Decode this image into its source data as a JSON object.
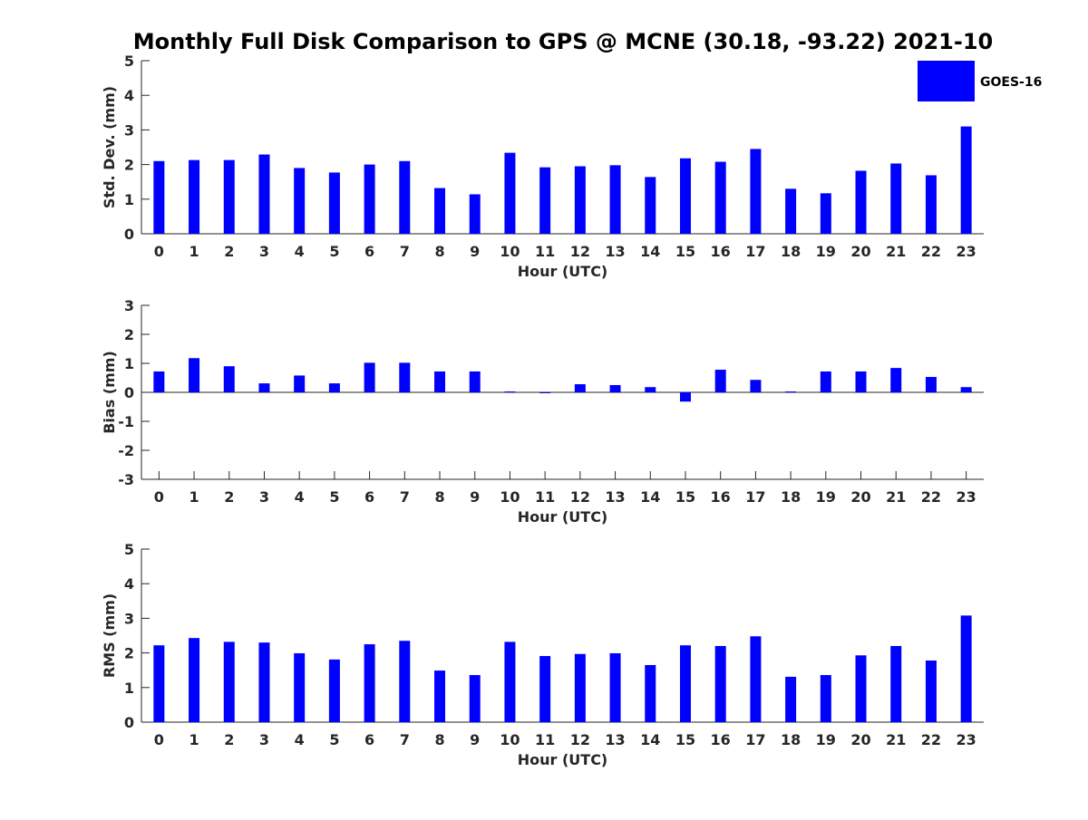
{
  "title": "Monthly Full Disk Comparison to GPS @ MCNE (30.18, -93.22) 2021-10",
  "legend": {
    "label": "GOES-16",
    "placement": "top-right",
    "color": "#0000ff"
  },
  "chart_data": [
    {
      "type": "bar",
      "ylabel": "Std. Dev. (mm)",
      "xlabel": "Hour (UTC)",
      "categories": [
        "0",
        "1",
        "2",
        "3",
        "4",
        "5",
        "6",
        "7",
        "8",
        "9",
        "10",
        "11",
        "12",
        "13",
        "14",
        "15",
        "16",
        "17",
        "18",
        "19",
        "20",
        "21",
        "22",
        "23"
      ],
      "ylim": [
        0,
        5
      ],
      "yticks": [
        0,
        1,
        2,
        3,
        4,
        5
      ],
      "zero_line": false,
      "series": [
        {
          "name": "GOES-16",
          "color": "#0000ff",
          "values": [
            2.1,
            2.13,
            2.13,
            2.29,
            1.9,
            1.77,
            2.0,
            2.1,
            1.32,
            1.14,
            2.34,
            1.92,
            1.95,
            1.98,
            1.64,
            2.18,
            2.08,
            2.45,
            1.3,
            1.17,
            1.82,
            2.03,
            1.69,
            3.1
          ]
        }
      ]
    },
    {
      "type": "bar",
      "ylabel": "Bias (mm)",
      "xlabel": "Hour (UTC)",
      "categories": [
        "0",
        "1",
        "2",
        "3",
        "4",
        "5",
        "6",
        "7",
        "8",
        "9",
        "10",
        "11",
        "12",
        "13",
        "14",
        "15",
        "16",
        "17",
        "18",
        "19",
        "20",
        "21",
        "22",
        "23"
      ],
      "ylim": [
        -3,
        3
      ],
      "yticks": [
        -3,
        -2,
        -1,
        0,
        1,
        2,
        3
      ],
      "zero_line": true,
      "series": [
        {
          "name": "GOES-16",
          "color": "#0000ff",
          "values": [
            0.72,
            1.18,
            0.9,
            0.31,
            0.58,
            0.31,
            1.02,
            1.02,
            0.72,
            0.72,
            0.03,
            -0.02,
            0.28,
            0.25,
            0.18,
            -0.32,
            0.78,
            0.43,
            0.03,
            0.72,
            0.72,
            0.84,
            0.53,
            0.18
          ]
        }
      ]
    },
    {
      "type": "bar",
      "ylabel": "RMS (mm)",
      "xlabel": "Hour (UTC)",
      "categories": [
        "0",
        "1",
        "2",
        "3",
        "4",
        "5",
        "6",
        "7",
        "8",
        "9",
        "10",
        "11",
        "12",
        "13",
        "14",
        "15",
        "16",
        "17",
        "18",
        "19",
        "20",
        "21",
        "22",
        "23"
      ],
      "ylim": [
        0,
        5
      ],
      "yticks": [
        0,
        1,
        2,
        3,
        4,
        5
      ],
      "zero_line": false,
      "series": [
        {
          "name": "GOES-16",
          "color": "#0000ff",
          "values": [
            2.22,
            2.43,
            2.32,
            2.3,
            1.99,
            1.81,
            2.25,
            2.35,
            1.49,
            1.36,
            2.32,
            1.91,
            1.97,
            1.99,
            1.65,
            2.22,
            2.2,
            2.48,
            1.31,
            1.36,
            1.93,
            2.2,
            1.78,
            3.08
          ]
        }
      ]
    }
  ]
}
